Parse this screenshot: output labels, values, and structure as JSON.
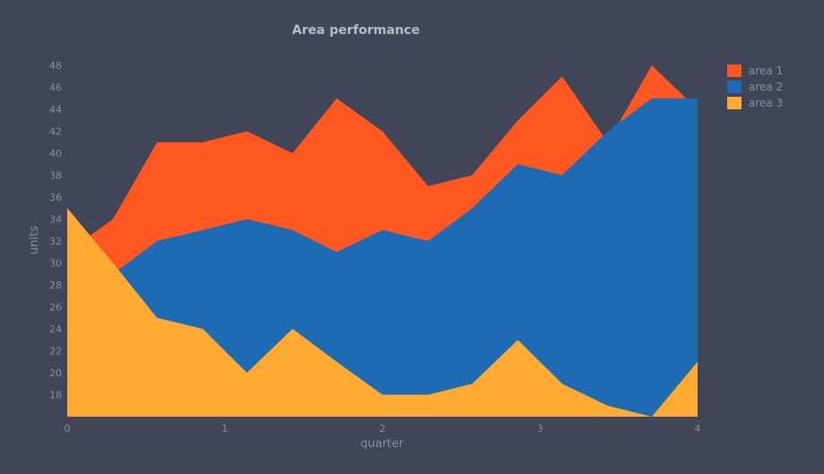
{
  "colors": {
    "background": "#404657",
    "text": "#8a8f9a",
    "title": "#b8bcc4",
    "series": [
      "#ff5722",
      "#1e6bb3",
      "#ffab33"
    ]
  },
  "chart_data": {
    "type": "area",
    "title": "Area performance",
    "xlabel": "quarter",
    "ylabel": "units",
    "xlim": [
      0,
      4
    ],
    "ylim": [
      16,
      48
    ],
    "x_ticks": [
      "0",
      "1",
      "2",
      "3",
      "4"
    ],
    "y_ticks": [
      "18",
      "20",
      "22",
      "24",
      "26",
      "28",
      "30",
      "32",
      "34",
      "36",
      "38",
      "40",
      "42",
      "44",
      "46",
      "48"
    ],
    "grid": false,
    "legend_position": "top-right",
    "x": [
      0,
      0.29,
      0.57,
      0.86,
      1.14,
      1.43,
      1.71,
      2.0,
      2.29,
      2.57,
      2.86,
      3.14,
      3.43,
      3.71,
      4.0
    ],
    "series": [
      {
        "name": "area 1",
        "values": [
          31,
          34,
          41,
          41,
          42,
          40,
          45,
          42,
          37,
          38,
          43,
          47,
          41,
          48,
          44
        ]
      },
      {
        "name": "area 2",
        "values": [
          31,
          29,
          32,
          33,
          34,
          33,
          31,
          33,
          32,
          35,
          39,
          38,
          42,
          45,
          45
        ]
      },
      {
        "name": "area 3",
        "values": [
          35,
          30,
          25,
          24,
          20,
          24,
          21,
          18,
          18,
          19,
          23,
          19,
          17,
          16,
          21
        ]
      }
    ]
  }
}
